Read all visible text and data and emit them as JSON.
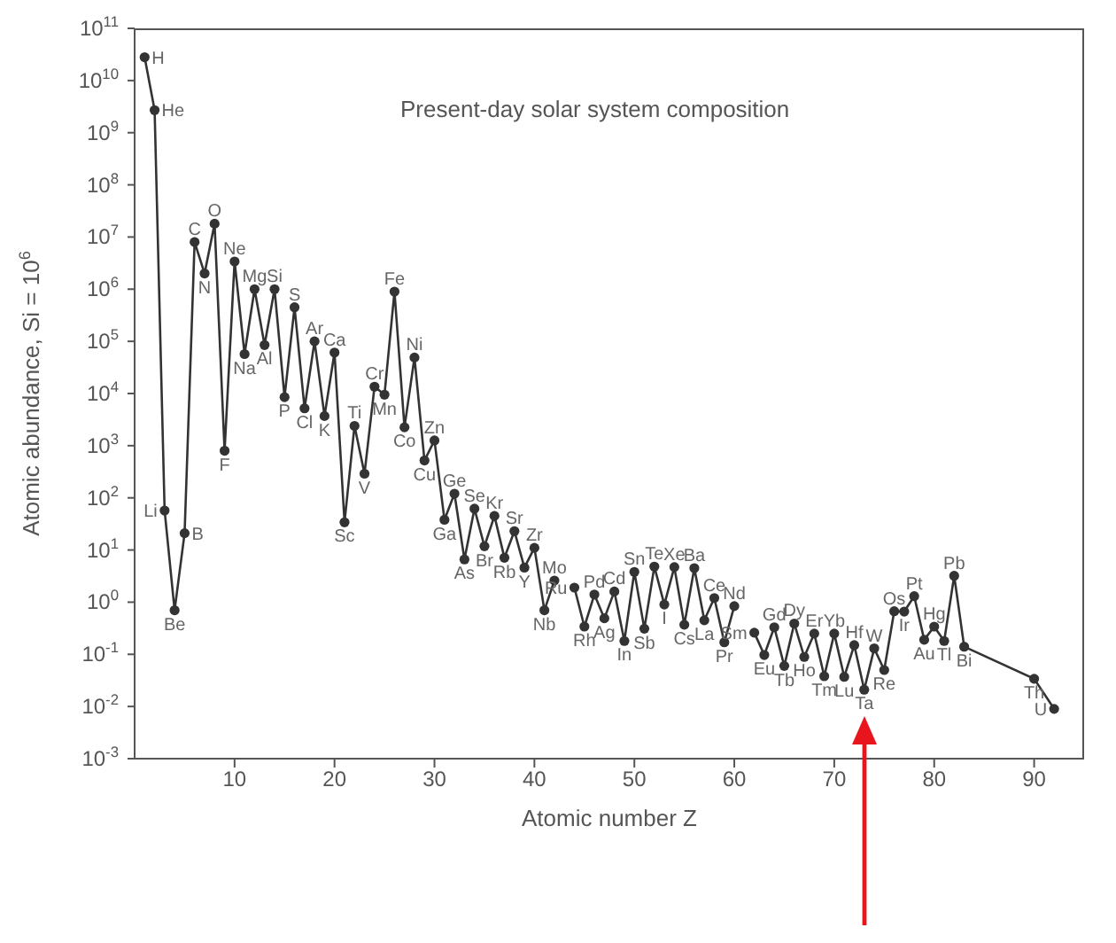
{
  "chart_data": {
    "type": "line",
    "title": "Present-day solar system composition",
    "xlabel": "Atomic number Z",
    "ylabel": "Atomic abundance, Si = 10$^{6}$",
    "x": [
      1,
      2,
      3,
      4,
      5,
      6,
      7,
      8,
      9,
      10,
      11,
      12,
      13,
      14,
      15,
      16,
      17,
      18,
      19,
      20,
      21,
      22,
      23,
      24,
      25,
      26,
      27,
      28,
      29,
      30,
      31,
      32,
      33,
      34,
      35,
      36,
      37,
      38,
      39,
      40,
      41,
      42,
      43,
      44,
      45,
      46,
      47,
      48,
      49,
      50,
      51,
      52,
      53,
      54,
      55,
      56,
      57,
      58,
      59,
      60,
      61,
      62,
      63,
      64,
      65,
      66,
      67,
      68,
      69,
      70,
      71,
      72,
      73,
      74,
      75,
      76,
      77,
      78,
      79,
      80,
      81,
      82,
      83,
      90,
      92
    ],
    "series": [
      {
        "color": "#333333",
        "values": [
          28000000000.0,
          2700000000.0,
          57,
          0.7,
          21,
          8000000.0,
          2000000.0,
          18000000.0,
          800,
          3400000.0,
          57000.0,
          1000000.0,
          85000.0,
          1000000.0,
          8500,
          450000.0,
          5200,
          100000.0,
          3700,
          61000.0,
          34,
          2400,
          290,
          13500.0,
          9500,
          900000.0,
          2250,
          49000.0,
          520,
          1260,
          38,
          120,
          6.6,
          62,
          11.8,
          45,
          7.1,
          23,
          4.6,
          11,
          0.7,
          2.6,
          null,
          1.9,
          0.34,
          1.4,
          0.49,
          1.6,
          0.18,
          3.8,
          0.31,
          4.8,
          0.9,
          4.7,
          0.37,
          4.5,
          0.45,
          1.2,
          0.17,
          0.84,
          null,
          0.26,
          0.097,
          0.33,
          0.06,
          0.39,
          0.089,
          0.25,
          0.038,
          0.25,
          0.037,
          0.15,
          0.021,
          0.13,
          0.05,
          0.67,
          0.66,
          1.3,
          0.19,
          0.34,
          0.18,
          3.2,
          0.14,
          0.034,
          0.009
        ]
      }
    ],
    "marker": "circle",
    "line_style": "solid",
    "log": "y",
    "xlim": [
      0,
      95
    ],
    "xticks": [
      10,
      20,
      30,
      40,
      50,
      60,
      70,
      80,
      90
    ],
    "ylim": [
      0.001,
      100000000000.0
    ],
    "yticks": [
      {
        "value": 0.001,
        "label": "10$^{-3}$"
      },
      {
        "value": 0.01,
        "label": "10$^{-2}$"
      },
      {
        "value": 0.1,
        "label": "10$^{-1}$"
      },
      {
        "value": 1,
        "label": "10$^{0}$"
      },
      {
        "value": 10,
        "label": "10$^{1}$"
      },
      {
        "value": 100,
        "label": "10$^{2}$"
      },
      {
        "value": 1000,
        "label": "10$^{3}$"
      },
      {
        "value": 10000.0,
        "label": "10$^{4}$"
      },
      {
        "value": 100000.0,
        "label": "10$^{5}$"
      },
      {
        "value": 1000000.0,
        "label": "10$^{6}$"
      },
      {
        "value": 10000000.0,
        "label": "10$^{7}$"
      },
      {
        "value": 100000000.0,
        "label": "10$^{8}$"
      },
      {
        "value": 1000000000.0,
        "label": "10$^{9}$"
      },
      {
        "value": 10000000000.0,
        "label": "10$^{10}$"
      },
      {
        "value": 100000000000.0,
        "label": "10$^{11}$"
      }
    ],
    "annotations": [
      {
        "text": "H",
        "x": 1,
        "y": 28000000000.0
      },
      {
        "text": "He",
        "x": 2,
        "y": 2700000000.0
      },
      {
        "text": "Li",
        "x": 3,
        "y": 57
      },
      {
        "text": "Be",
        "x": 4,
        "y": 0.7
      },
      {
        "text": "B",
        "x": 5,
        "y": 21
      },
      {
        "text": "C",
        "x": 6,
        "y": 8000000.0
      },
      {
        "text": "N",
        "x": 7,
        "y": 2000000.0
      },
      {
        "text": "O",
        "x": 8,
        "y": 18000000.0
      },
      {
        "text": "F",
        "x": 9,
        "y": 800
      },
      {
        "text": "Ne",
        "x": 10,
        "y": 3400000.0
      },
      {
        "text": "Na",
        "x": 11,
        "y": 57000.0
      },
      {
        "text": "Mg",
        "x": 12,
        "y": 1000000.0
      },
      {
        "text": "Al",
        "x": 13,
        "y": 85000.0
      },
      {
        "text": "Si",
        "x": 14,
        "y": 1000000.0
      },
      {
        "text": "P",
        "x": 15,
        "y": 8500
      },
      {
        "text": "S",
        "x": 16,
        "y": 450000.0
      },
      {
        "text": "Cl",
        "x": 17,
        "y": 5200
      },
      {
        "text": "Ar",
        "x": 18,
        "y": 100000.0
      },
      {
        "text": "K",
        "x": 19,
        "y": 3700
      },
      {
        "text": "Ca",
        "x": 20,
        "y": 61000.0
      },
      {
        "text": "Sc",
        "x": 21,
        "y": 34
      },
      {
        "text": "Ti",
        "x": 22,
        "y": 2400
      },
      {
        "text": "V",
        "x": 23,
        "y": 290
      },
      {
        "text": "Cr",
        "x": 24,
        "y": 13500.0
      },
      {
        "text": "Mn",
        "x": 25,
        "y": 9500
      },
      {
        "text": "Fe",
        "x": 26,
        "y": 900000.0
      },
      {
        "text": "Co",
        "x": 27,
        "y": 2250
      },
      {
        "text": "Ni",
        "x": 28,
        "y": 49000.0
      },
      {
        "text": "Cu",
        "x": 29,
        "y": 520
      },
      {
        "text": "Zn",
        "x": 30,
        "y": 1260
      },
      {
        "text": "Ga",
        "x": 31,
        "y": 38
      },
      {
        "text": "Ge",
        "x": 32,
        "y": 120
      },
      {
        "text": "As",
        "x": 33,
        "y": 6.6
      },
      {
        "text": "Se",
        "x": 34,
        "y": 62
      },
      {
        "text": "Br",
        "x": 35,
        "y": 11.8
      },
      {
        "text": "Kr",
        "x": 36,
        "y": 45
      },
      {
        "text": "Rb",
        "x": 37,
        "y": 7.1
      },
      {
        "text": "Sr",
        "x": 38,
        "y": 23
      },
      {
        "text": "Y",
        "x": 39,
        "y": 4.6
      },
      {
        "text": "Zr",
        "x": 40,
        "y": 11
      },
      {
        "text": "Nb",
        "x": 41,
        "y": 0.7
      },
      {
        "text": "Mo",
        "x": 42,
        "y": 2.6
      },
      {
        "text": "Ru",
        "x": 44,
        "y": 1.9
      },
      {
        "text": "Rh",
        "x": 45,
        "y": 0.34
      },
      {
        "text": "Pd",
        "x": 46,
        "y": 1.4
      },
      {
        "text": "Ag",
        "x": 47,
        "y": 0.49
      },
      {
        "text": "Cd",
        "x": 48,
        "y": 1.6
      },
      {
        "text": "In",
        "x": 49,
        "y": 0.18
      },
      {
        "text": "Sn",
        "x": 50,
        "y": 3.8
      },
      {
        "text": "Sb",
        "x": 51,
        "y": 0.31
      },
      {
        "text": "Te",
        "x": 52,
        "y": 4.8
      },
      {
        "text": "I",
        "x": 53,
        "y": 0.9
      },
      {
        "text": "Xe",
        "x": 54,
        "y": 4.7
      },
      {
        "text": "Cs",
        "x": 55,
        "y": 0.37
      },
      {
        "text": "Ba",
        "x": 56,
        "y": 4.5
      },
      {
        "text": "La",
        "x": 57,
        "y": 0.45
      },
      {
        "text": "Ce",
        "x": 58,
        "y": 1.2
      },
      {
        "text": "Pr",
        "x": 59,
        "y": 0.17
      },
      {
        "text": "Nd",
        "x": 60,
        "y": 0.84
      },
      {
        "text": "Sm",
        "x": 62,
        "y": 0.26
      },
      {
        "text": "Eu",
        "x": 63,
        "y": 0.097
      },
      {
        "text": "Gd",
        "x": 64,
        "y": 0.33
      },
      {
        "text": "Tb",
        "x": 65,
        "y": 0.06
      },
      {
        "text": "Dy",
        "x": 66,
        "y": 0.39
      },
      {
        "text": "Ho",
        "x": 67,
        "y": 0.089
      },
      {
        "text": "Er",
        "x": 68,
        "y": 0.25
      },
      {
        "text": "Tm",
        "x": 69,
        "y": 0.038
      },
      {
        "text": "Yb",
        "x": 70,
        "y": 0.25
      },
      {
        "text": "Lu",
        "x": 71,
        "y": 0.037
      },
      {
        "text": "Hf",
        "x": 72,
        "y": 0.15
      },
      {
        "text": "Ta",
        "x": 73,
        "y": 0.021
      },
      {
        "text": "W",
        "x": 74,
        "y": 0.13
      },
      {
        "text": "Re",
        "x": 75,
        "y": 0.05
      },
      {
        "text": "Os",
        "x": 76,
        "y": 0.67
      },
      {
        "text": "Ir",
        "x": 77,
        "y": 0.66
      },
      {
        "text": "Pt",
        "x": 78,
        "y": 1.3
      },
      {
        "text": "Au",
        "x": 79,
        "y": 0.19
      },
      {
        "text": "Hg",
        "x": 80,
        "y": 0.34
      },
      {
        "text": "Tl",
        "x": 81,
        "y": 0.18
      },
      {
        "text": "Pb",
        "x": 82,
        "y": 3.2
      },
      {
        "text": "Bi",
        "x": 83,
        "y": 0.14
      },
      {
        "text": "Th",
        "x": 90,
        "y": 0.034
      },
      {
        "text": "U",
        "x": 92,
        "y": 0.009
      }
    ]
  }
}
